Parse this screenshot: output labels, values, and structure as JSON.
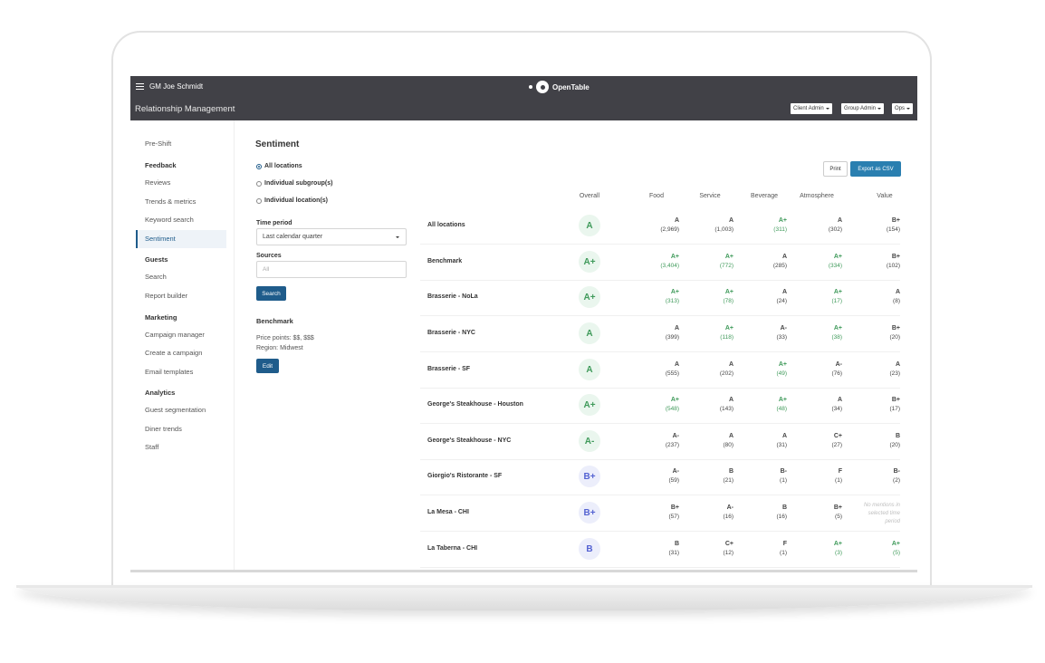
{
  "header": {
    "user_name": "GM Joe Schmidt",
    "brand": "OpenTable",
    "app_title": "Relationship Management",
    "roles": [
      "Client Admin",
      "Group Admin",
      "Ops"
    ]
  },
  "sidebar": {
    "pre_shift": "Pre-Shift",
    "feedback": {
      "heading": "Feedback",
      "items": [
        "Reviews",
        "Trends & metrics",
        "Keyword search",
        "Sentiment"
      ]
    },
    "guests": {
      "heading": "Guests",
      "items": [
        "Search",
        "Report builder"
      ]
    },
    "marketing": {
      "heading": "Marketing",
      "items": [
        "Campaign manager",
        "Create a campaign",
        "Email templates"
      ]
    },
    "analytics": {
      "heading": "Analytics",
      "items": [
        "Guest segmentation",
        "Diner trends",
        "Staff"
      ]
    },
    "active": "Sentiment"
  },
  "filters": {
    "title": "Sentiment",
    "scope_options": [
      "All locations",
      "Individual subgroup(s)",
      "Individual location(s)"
    ],
    "scope_selected": "All locations",
    "time_period_label": "Time period",
    "time_period_value": "Last calendar quarter",
    "sources_label": "Sources",
    "sources_placeholder": "All",
    "search_label": "Search",
    "benchmark_title": "Benchmark",
    "price_points": "Price points: $$, $$$",
    "region": "Region: Midwest",
    "edit_label": "Edit"
  },
  "actions": {
    "print": "Print",
    "export": "Export as CSV"
  },
  "table": {
    "columns": [
      "Overall",
      "Food",
      "Service",
      "Beverage",
      "Atmosphere",
      "Value"
    ],
    "rows": [
      {
        "name": "All locations",
        "overall": "A",
        "cells": [
          [
            "A",
            "(2,969)"
          ],
          [
            "A",
            "(1,003)"
          ],
          [
            "A+",
            "(311)"
          ],
          [
            "A",
            "(302)"
          ],
          [
            "B+",
            "(154)"
          ]
        ]
      },
      {
        "name": "Benchmark",
        "overall": "A+",
        "cells": [
          [
            "A+",
            "(3,404)"
          ],
          [
            "A+",
            "(772)"
          ],
          [
            "A",
            "(285)"
          ],
          [
            "A+",
            "(334)"
          ],
          [
            "B+",
            "(102)"
          ]
        ]
      },
      {
        "name": "Brasserie - NoLa",
        "overall": "A+",
        "cells": [
          [
            "A+",
            "(313)"
          ],
          [
            "A+",
            "(78)"
          ],
          [
            "A",
            "(24)"
          ],
          [
            "A+",
            "(17)"
          ],
          [
            "A",
            "(8)"
          ]
        ]
      },
      {
        "name": "Brasserie - NYC",
        "overall": "A",
        "cells": [
          [
            "A",
            "(399)"
          ],
          [
            "A+",
            "(118)"
          ],
          [
            "A-",
            "(33)"
          ],
          [
            "A+",
            "(38)"
          ],
          [
            "B+",
            "(20)"
          ]
        ]
      },
      {
        "name": "Brasserie - SF",
        "overall": "A",
        "cells": [
          [
            "A",
            "(555)"
          ],
          [
            "A",
            "(202)"
          ],
          [
            "A+",
            "(49)"
          ],
          [
            "A-",
            "(76)"
          ],
          [
            "A",
            "(23)"
          ]
        ]
      },
      {
        "name": "George's Steakhouse - Houston",
        "overall": "A+",
        "cells": [
          [
            "A+",
            "(548)"
          ],
          [
            "A",
            "(143)"
          ],
          [
            "A+",
            "(48)"
          ],
          [
            "A",
            "(34)"
          ],
          [
            "B+",
            "(17)"
          ]
        ]
      },
      {
        "name": "George's Steakhouse - NYC",
        "overall": "A-",
        "cells": [
          [
            "A-",
            "(237)"
          ],
          [
            "A",
            "(80)"
          ],
          [
            "A",
            "(31)"
          ],
          [
            "C+",
            "(27)"
          ],
          [
            "B",
            "(20)"
          ]
        ]
      },
      {
        "name": "Giorgio's Ristorante - SF",
        "overall": "B+",
        "cells": [
          [
            "A-",
            "(59)"
          ],
          [
            "B",
            "(21)"
          ],
          [
            "B-",
            "(1)"
          ],
          [
            "F",
            "(1)"
          ],
          [
            "B-",
            "(2)"
          ]
        ]
      },
      {
        "name": "La Mesa - CHI",
        "overall": "B+",
        "cells": [
          [
            "B+",
            "(57)"
          ],
          [
            "A-",
            "(16)"
          ],
          [
            "B",
            "(16)"
          ],
          [
            "B+",
            "(5)"
          ],
          [
            "No mentions in selected time period",
            ""
          ]
        ]
      },
      {
        "name": "La Taberna - CHI",
        "overall": "B",
        "cells": [
          [
            "B",
            "(31)"
          ],
          [
            "C+",
            "(12)"
          ],
          [
            "F",
            "(1)"
          ],
          [
            "A+",
            "(3)"
          ],
          [
            "A+",
            "(5)"
          ]
        ]
      }
    ]
  },
  "colors": {
    "topbar": "#414147",
    "accent": "#1f5c8b",
    "export": "#2a7fb0",
    "grade_green": "#3f9a5a",
    "grade_blue": "#5462d2"
  }
}
